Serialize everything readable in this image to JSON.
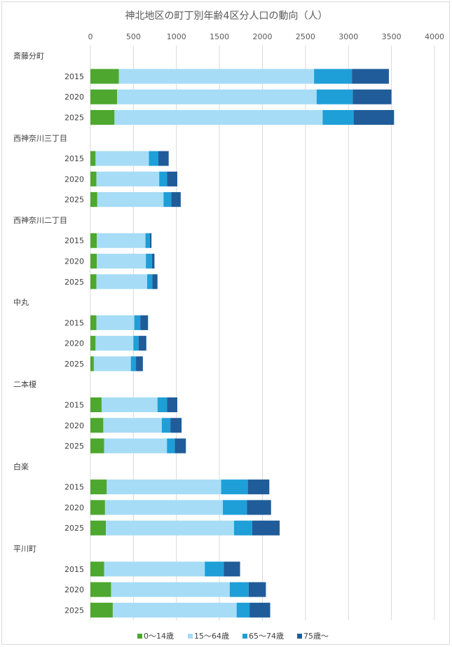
{
  "chart_data": {
    "type": "bar",
    "orientation": "horizontal",
    "stacked": true,
    "title": "神北地区の町丁別年齢4区分人口の動向（人）",
    "xlim": [
      0,
      4000
    ],
    "x_ticks": [
      0,
      500,
      1000,
      1500,
      2000,
      2500,
      3000,
      3500,
      4000
    ],
    "x_axis_position": "top",
    "grid": true,
    "legend_position": "bottom",
    "series": [
      {
        "name": "0～14歳",
        "color": "#4ea72e"
      },
      {
        "name": "15～64歳",
        "color": "#a6dcf6"
      },
      {
        "name": "65～74歳",
        "color": "#1e9fd8"
      },
      {
        "name": "75歳～",
        "color": "#1f5c99"
      }
    ],
    "groups": [
      {
        "name": "斎藤分町",
        "rows": [
          {
            "label": "2015",
            "values": [
              330,
              2270,
              440,
              430
            ]
          },
          {
            "label": "2020",
            "values": [
              310,
              2320,
              420,
              450
            ]
          },
          {
            "label": "2025",
            "values": [
              280,
              2420,
              360,
              470
            ]
          }
        ]
      },
      {
        "name": "西神奈川三丁目",
        "rows": [
          {
            "label": "2015",
            "values": [
              60,
              620,
              110,
              120
            ]
          },
          {
            "label": "2020",
            "values": [
              70,
              730,
              90,
              120
            ]
          },
          {
            "label": "2025",
            "values": [
              80,
              770,
              90,
              110
            ]
          }
        ]
      },
      {
        "name": "西神奈川二丁目",
        "rows": [
          {
            "label": "2015",
            "values": [
              75,
              565,
              50,
              20
            ]
          },
          {
            "label": "2020",
            "values": [
              75,
              570,
              70,
              30
            ]
          },
          {
            "label": "2025",
            "values": [
              70,
              590,
              60,
              60
            ]
          }
        ]
      },
      {
        "name": "中丸",
        "rows": [
          {
            "label": "2015",
            "values": [
              70,
              440,
              70,
              90
            ]
          },
          {
            "label": "2020",
            "values": [
              60,
              440,
              60,
              90
            ]
          },
          {
            "label": "2025",
            "values": [
              40,
              430,
              60,
              80
            ]
          }
        ]
      },
      {
        "name": "二本榎",
        "rows": [
          {
            "label": "2015",
            "values": [
              130,
              650,
              110,
              120
            ]
          },
          {
            "label": "2020",
            "values": [
              150,
              680,
              100,
              130
            ]
          },
          {
            "label": "2025",
            "values": [
              160,
              730,
              90,
              130
            ]
          }
        ]
      },
      {
        "name": "白楽",
        "rows": [
          {
            "label": "2015",
            "values": [
              190,
              1330,
              310,
              250
            ]
          },
          {
            "label": "2020",
            "values": [
              170,
              1370,
              280,
              280
            ]
          },
          {
            "label": "2025",
            "values": [
              180,
              1490,
              210,
              320
            ]
          }
        ]
      },
      {
        "name": "平川町",
        "rows": [
          {
            "label": "2015",
            "values": [
              160,
              1170,
              220,
              190
            ]
          },
          {
            "label": "2020",
            "values": [
              240,
              1380,
              220,
              200
            ]
          },
          {
            "label": "2025",
            "values": [
              260,
              1440,
              150,
              240
            ]
          }
        ]
      }
    ]
  }
}
